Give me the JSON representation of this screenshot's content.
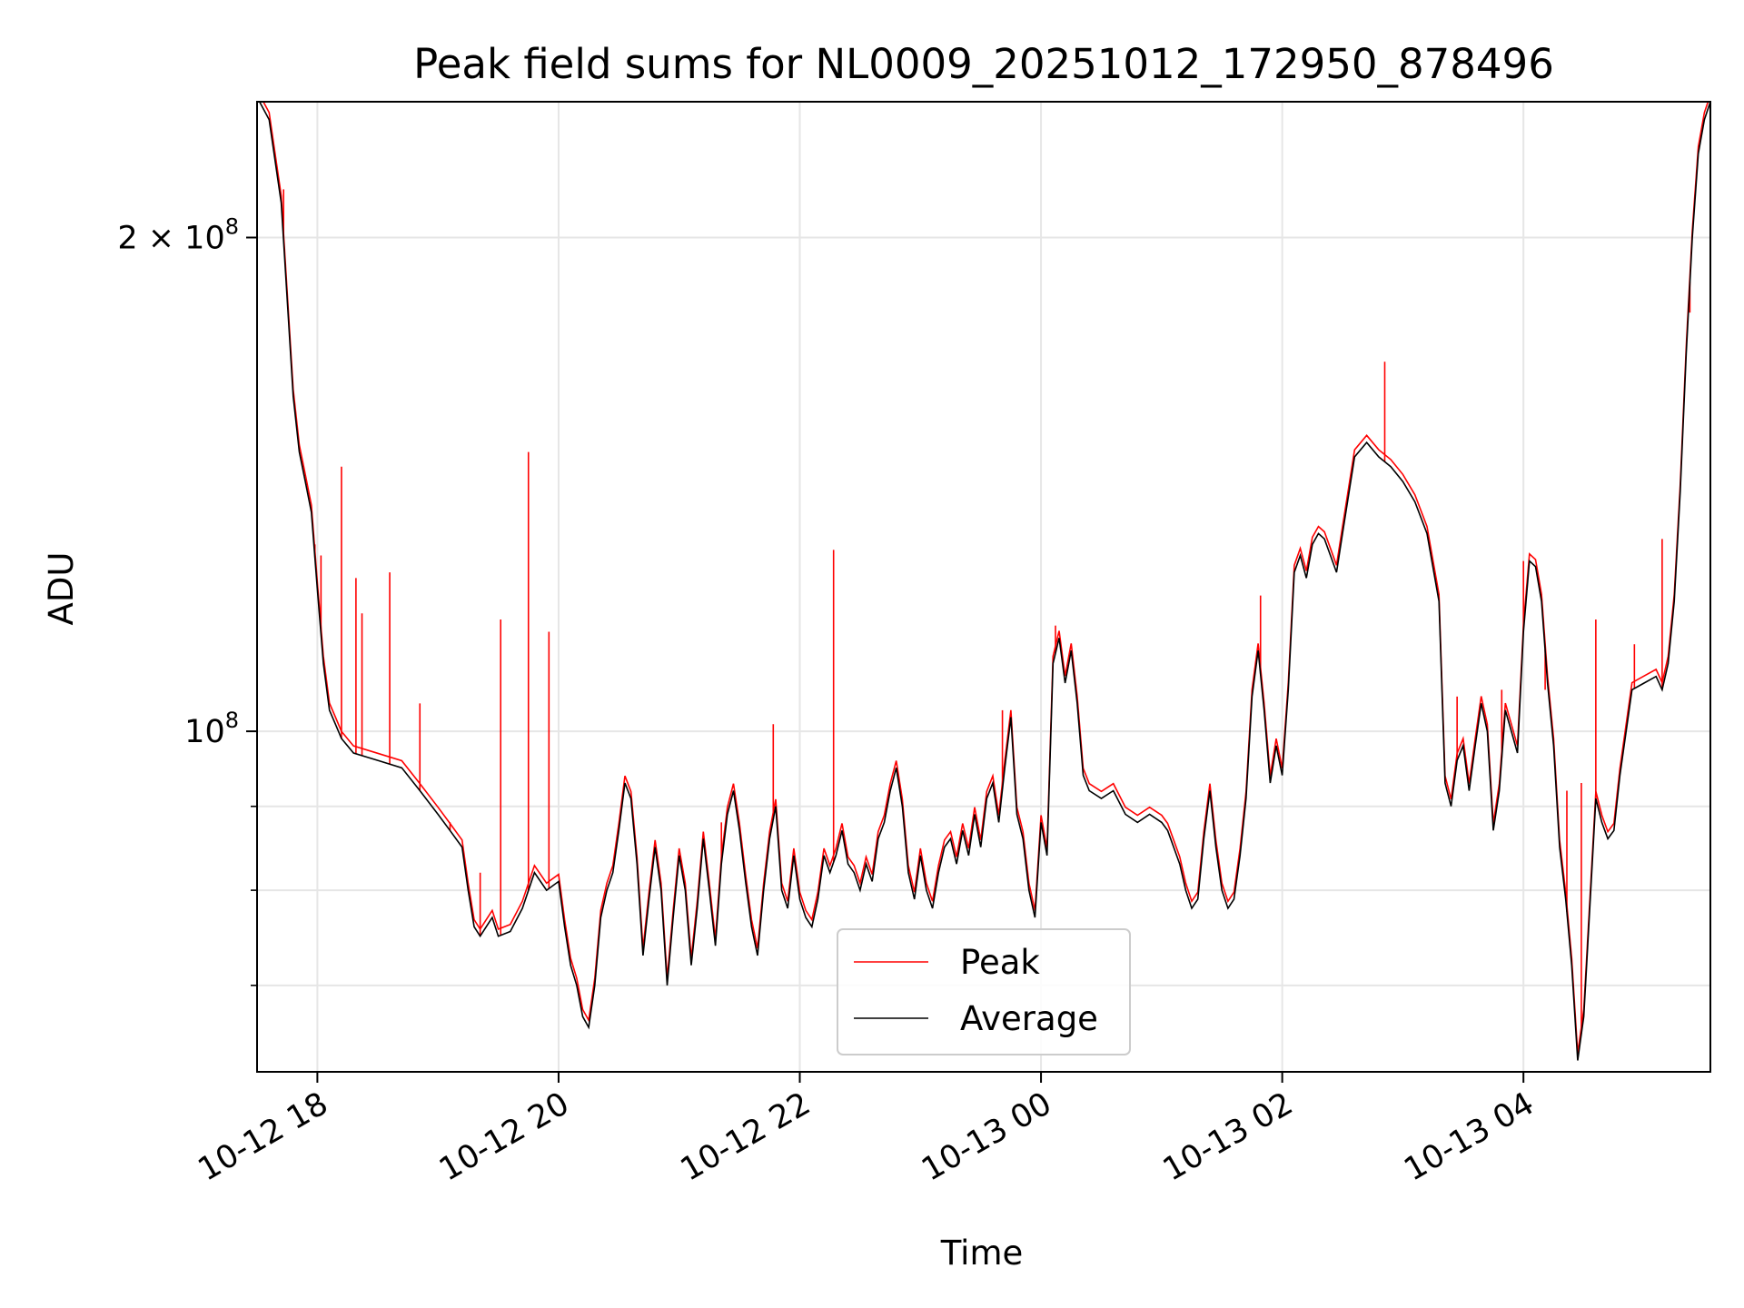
{
  "chart_data": {
    "type": "line",
    "title": "Peak field sums for NL0009_20251012_172950_878496",
    "xlabel": "Time",
    "ylabel": "ADU",
    "x_unit": "hours since 2025-10-12 00:00",
    "xlim": [
      17.5,
      29.55
    ],
    "ylim": [
      62000000,
      242000000
    ],
    "yscale": "log",
    "grid": true,
    "x_ticks": [
      {
        "value": 18,
        "label": "10-12 18"
      },
      {
        "value": 20,
        "label": "10-12 20"
      },
      {
        "value": 22,
        "label": "10-12 22"
      },
      {
        "value": 24,
        "label": "10-13 00"
      },
      {
        "value": 26,
        "label": "10-13 02"
      },
      {
        "value": 28,
        "label": "10-13 04"
      }
    ],
    "y_major_ticks": [
      {
        "value": 100000000,
        "label_base": "10",
        "label_exp": "8"
      },
      {
        "value": 200000000,
        "label_base": "2 × 10",
        "label_exp": "8"
      }
    ],
    "y_minor_ticks": [
      70000000,
      80000000,
      90000000,
      200000000
    ],
    "legend": {
      "position": "lower-center",
      "entries": [
        {
          "label": "Peak",
          "color": "#ff0000"
        },
        {
          "label": "Average",
          "color": "#000000"
        }
      ]
    },
    "series": [
      {
        "name": "Average",
        "color": "#000000",
        "points": [
          [
            17.52,
            242000000
          ],
          [
            17.6,
            236000000
          ],
          [
            17.7,
            210000000
          ],
          [
            17.8,
            160000000
          ],
          [
            17.85,
            148000000
          ],
          [
            17.9,
            142000000
          ],
          [
            17.95,
            136000000
          ],
          [
            18.0,
            122000000
          ],
          [
            18.05,
            110000000
          ],
          [
            18.1,
            103000000
          ],
          [
            18.15,
            101000000
          ],
          [
            18.2,
            99000000
          ],
          [
            18.3,
            97000000
          ],
          [
            18.5,
            96000000
          ],
          [
            18.7,
            95000000
          ],
          [
            18.85,
            92000000
          ],
          [
            19.0,
            89000000
          ],
          [
            19.1,
            87000000
          ],
          [
            19.2,
            85000000
          ],
          [
            19.25,
            80000000
          ],
          [
            19.3,
            76000000
          ],
          [
            19.35,
            75000000
          ],
          [
            19.45,
            77000000
          ],
          [
            19.5,
            75000000
          ],
          [
            19.6,
            75500000
          ],
          [
            19.7,
            78000000
          ],
          [
            19.8,
            82000000
          ],
          [
            19.9,
            80000000
          ],
          [
            20.0,
            81000000
          ],
          [
            20.05,
            76000000
          ],
          [
            20.1,
            72000000
          ],
          [
            20.15,
            70000000
          ],
          [
            20.2,
            67000000
          ],
          [
            20.25,
            66000000
          ],
          [
            20.3,
            70000000
          ],
          [
            20.35,
            77000000
          ],
          [
            20.4,
            80000000
          ],
          [
            20.45,
            82000000
          ],
          [
            20.5,
            87000000
          ],
          [
            20.55,
            93000000
          ],
          [
            20.6,
            91000000
          ],
          [
            20.65,
            83000000
          ],
          [
            20.7,
            73000000
          ],
          [
            20.75,
            79000000
          ],
          [
            20.8,
            85000000
          ],
          [
            20.85,
            80000000
          ],
          [
            20.9,
            70000000
          ],
          [
            20.95,
            77000000
          ],
          [
            21.0,
            84000000
          ],
          [
            21.05,
            80000000
          ],
          [
            21.1,
            72000000
          ],
          [
            21.15,
            78000000
          ],
          [
            21.2,
            86000000
          ],
          [
            21.25,
            80000000
          ],
          [
            21.3,
            74000000
          ],
          [
            21.35,
            83000000
          ],
          [
            21.4,
            89000000
          ],
          [
            21.45,
            92000000
          ],
          [
            21.5,
            87000000
          ],
          [
            21.55,
            81000000
          ],
          [
            21.6,
            76000000
          ],
          [
            21.65,
            73000000
          ],
          [
            21.7,
            80000000
          ],
          [
            21.75,
            86000000
          ],
          [
            21.8,
            90000000
          ],
          [
            21.85,
            80000000
          ],
          [
            21.9,
            78000000
          ],
          [
            21.95,
            84000000
          ],
          [
            22.0,
            79000000
          ],
          [
            22.05,
            77000000
          ],
          [
            22.1,
            76000000
          ],
          [
            22.15,
            79000000
          ],
          [
            22.2,
            84000000
          ],
          [
            22.25,
            82000000
          ],
          [
            22.3,
            84000000
          ],
          [
            22.35,
            87000000
          ],
          [
            22.4,
            83000000
          ],
          [
            22.45,
            82000000
          ],
          [
            22.5,
            80000000
          ],
          [
            22.55,
            83000000
          ],
          [
            22.6,
            81000000
          ],
          [
            22.65,
            86000000
          ],
          [
            22.7,
            88000000
          ],
          [
            22.75,
            92000000
          ],
          [
            22.8,
            95000000
          ],
          [
            22.85,
            90000000
          ],
          [
            22.9,
            82000000
          ],
          [
            22.95,
            79000000
          ],
          [
            23.0,
            84000000
          ],
          [
            23.05,
            80000000
          ],
          [
            23.1,
            78000000
          ],
          [
            23.15,
            82000000
          ],
          [
            23.2,
            85000000
          ],
          [
            23.25,
            86000000
          ],
          [
            23.3,
            83000000
          ],
          [
            23.35,
            87000000
          ],
          [
            23.4,
            84000000
          ],
          [
            23.45,
            89000000
          ],
          [
            23.5,
            85000000
          ],
          [
            23.55,
            91000000
          ],
          [
            23.6,
            93000000
          ],
          [
            23.65,
            88000000
          ],
          [
            23.7,
            95000000
          ],
          [
            23.75,
            102000000
          ],
          [
            23.8,
            89000000
          ],
          [
            23.85,
            86000000
          ],
          [
            23.9,
            80000000
          ],
          [
            23.95,
            77000000
          ],
          [
            24.0,
            88000000
          ],
          [
            24.05,
            84000000
          ],
          [
            24.1,
            110000000
          ],
          [
            24.15,
            114000000
          ],
          [
            24.2,
            107000000
          ],
          [
            24.25,
            112000000
          ],
          [
            24.3,
            104000000
          ],
          [
            24.35,
            94000000
          ],
          [
            24.4,
            92000000
          ],
          [
            24.5,
            91000000
          ],
          [
            24.6,
            92000000
          ],
          [
            24.7,
            89000000
          ],
          [
            24.8,
            88000000
          ],
          [
            24.9,
            89000000
          ],
          [
            25.0,
            88000000
          ],
          [
            25.05,
            87000000
          ],
          [
            25.1,
            85000000
          ],
          [
            25.15,
            83000000
          ],
          [
            25.2,
            80000000
          ],
          [
            25.25,
            78000000
          ],
          [
            25.3,
            79000000
          ],
          [
            25.35,
            86000000
          ],
          [
            25.4,
            92000000
          ],
          [
            25.45,
            85000000
          ],
          [
            25.5,
            80000000
          ],
          [
            25.55,
            78000000
          ],
          [
            25.6,
            79000000
          ],
          [
            25.65,
            84000000
          ],
          [
            25.7,
            91000000
          ],
          [
            25.75,
            105000000
          ],
          [
            25.8,
            112000000
          ],
          [
            25.85,
            103000000
          ],
          [
            25.9,
            93000000
          ],
          [
            25.95,
            98000000
          ],
          [
            26.0,
            94000000
          ],
          [
            26.05,
            106000000
          ],
          [
            26.1,
            125000000
          ],
          [
            26.15,
            128000000
          ],
          [
            26.2,
            124000000
          ],
          [
            26.25,
            130000000
          ],
          [
            26.3,
            132000000
          ],
          [
            26.35,
            131000000
          ],
          [
            26.4,
            128000000
          ],
          [
            26.45,
            125000000
          ],
          [
            26.5,
            132000000
          ],
          [
            26.6,
            147000000
          ],
          [
            26.7,
            150000000
          ],
          [
            26.8,
            147000000
          ],
          [
            26.9,
            145000000
          ],
          [
            27.0,
            142000000
          ],
          [
            27.1,
            138000000
          ],
          [
            27.2,
            132000000
          ],
          [
            27.3,
            120000000
          ],
          [
            27.35,
            93000000
          ],
          [
            27.4,
            90000000
          ],
          [
            27.45,
            96000000
          ],
          [
            27.5,
            98000000
          ],
          [
            27.55,
            92000000
          ],
          [
            27.6,
            98000000
          ],
          [
            27.65,
            104000000
          ],
          [
            27.7,
            100000000
          ],
          [
            27.75,
            87000000
          ],
          [
            27.8,
            92000000
          ],
          [
            27.85,
            103000000
          ],
          [
            27.9,
            100000000
          ],
          [
            27.95,
            97000000
          ],
          [
            28.0,
            115000000
          ],
          [
            28.05,
            127000000
          ],
          [
            28.1,
            126000000
          ],
          [
            28.15,
            120000000
          ],
          [
            28.2,
            107000000
          ],
          [
            28.25,
            98000000
          ],
          [
            28.3,
            85000000
          ],
          [
            28.35,
            79000000
          ],
          [
            28.4,
            72000000
          ],
          [
            28.45,
            63000000
          ],
          [
            28.5,
            67000000
          ],
          [
            28.55,
            78000000
          ],
          [
            28.6,
            91000000
          ],
          [
            28.65,
            88000000
          ],
          [
            28.7,
            86000000
          ],
          [
            28.75,
            87000000
          ],
          [
            28.8,
            94000000
          ],
          [
            28.9,
            106000000
          ],
          [
            29.0,
            107000000
          ],
          [
            29.1,
            108000000
          ],
          [
            29.15,
            106000000
          ],
          [
            29.2,
            110000000
          ],
          [
            29.25,
            120000000
          ],
          [
            29.3,
            140000000
          ],
          [
            29.35,
            170000000
          ],
          [
            29.4,
            200000000
          ],
          [
            29.45,
            225000000
          ],
          [
            29.5,
            236000000
          ],
          [
            29.55,
            242000000
          ]
        ]
      },
      {
        "name": "Peak",
        "color": "#ff0000",
        "spikes": [
          [
            17.72,
            214000000
          ],
          [
            17.98,
            130000000
          ],
          [
            18.03,
            128000000
          ],
          [
            18.2,
            145000000
          ],
          [
            18.32,
            124000000
          ],
          [
            18.37,
            118000000
          ],
          [
            18.6,
            125000000
          ],
          [
            18.85,
            104000000
          ],
          [
            19.1,
            88000000
          ],
          [
            19.35,
            82000000
          ],
          [
            19.52,
            117000000
          ],
          [
            19.75,
            148000000
          ],
          [
            19.92,
            115000000
          ],
          [
            21.35,
            88000000
          ],
          [
            21.78,
            101000000
          ],
          [
            22.28,
            129000000
          ],
          [
            23.68,
            103000000
          ],
          [
            24.12,
            116000000
          ],
          [
            25.82,
            121000000
          ],
          [
            26.85,
            168000000
          ],
          [
            27.45,
            105000000
          ],
          [
            27.82,
            106000000
          ],
          [
            28.0,
            127000000
          ],
          [
            28.18,
            106000000
          ],
          [
            28.36,
            92000000
          ],
          [
            28.48,
            93000000
          ],
          [
            28.6,
            117000000
          ],
          [
            28.92,
            113000000
          ],
          [
            29.15,
            131000000
          ],
          [
            29.38,
            180000000
          ]
        ]
      }
    ]
  }
}
